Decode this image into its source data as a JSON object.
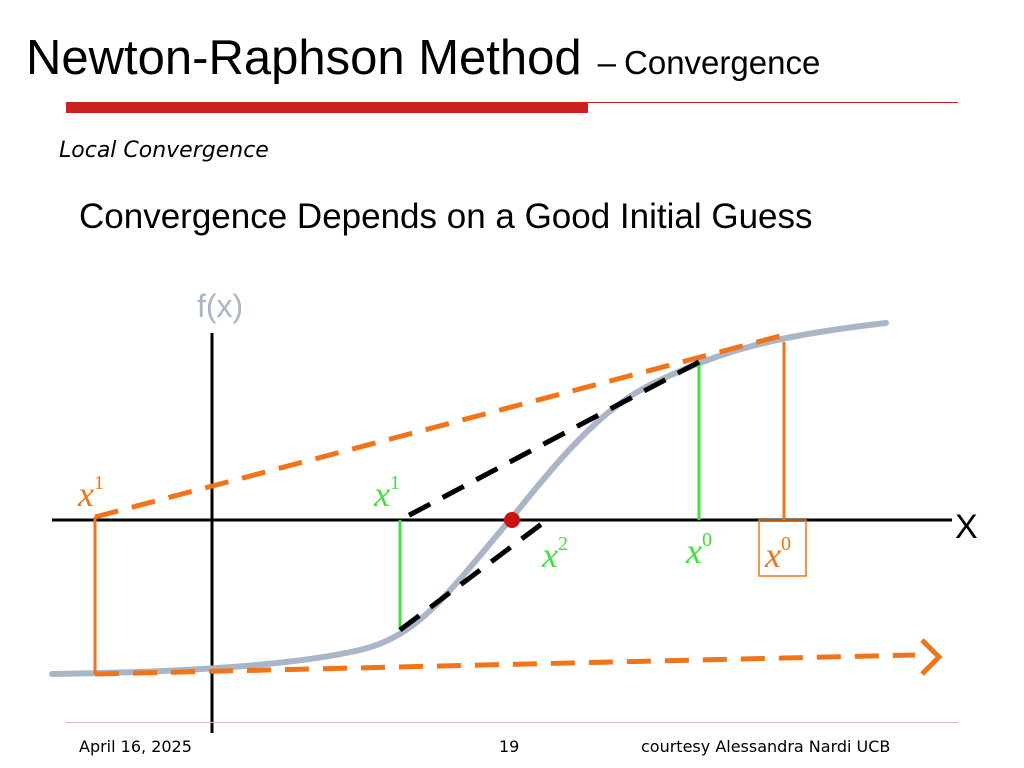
{
  "slide": {
    "title": "Newton-Raphson Method",
    "title_dash": "–",
    "title_sub": "Convergence",
    "subtitle": "Local Convergence",
    "heading": "Convergence Depends on a Good Initial Guess"
  },
  "diagram": {
    "y_axis_label": "f(x)",
    "x_axis_label": "X",
    "bad_guess": {
      "x0_base": "x",
      "x0_sup": "0",
      "x1_base": "x",
      "x1_sup": "1",
      "color": "#f07418"
    },
    "good_guess": {
      "x0_base": "x",
      "x0_sup": "0",
      "x1_base": "x",
      "x1_sup": "1",
      "x2_base": "x",
      "x2_sup": "2",
      "color": "#44dd44"
    },
    "curve_color": "#a9b6c6",
    "root_color": "#cc1111"
  },
  "footer": {
    "date": "April 16, 2025",
    "page": "19",
    "credit": "courtesy Alessandra Nardi UCB"
  },
  "colors": {
    "accent": "#cc1f1f"
  }
}
